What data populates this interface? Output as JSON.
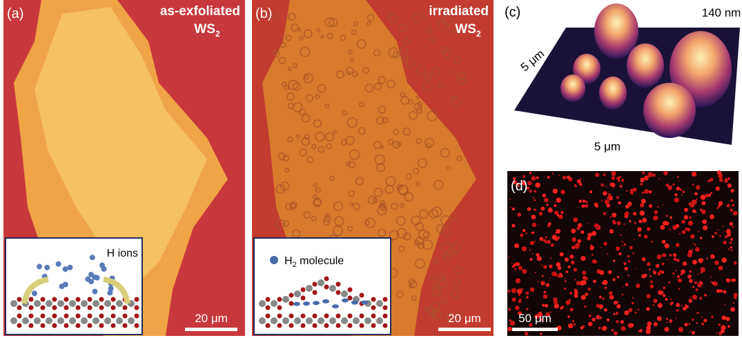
{
  "panels": [
    {
      "label": "(a)",
      "title": "as-exfoliated",
      "material": {
        "base": "WS",
        "sub": "2"
      },
      "inset_label": "H ions",
      "scale_bar": "20 μm"
    },
    {
      "label": "(b)",
      "title": "irradiated",
      "material": {
        "base": "WS",
        "sub": "2"
      },
      "inset_label": {
        "base": "H",
        "sub": "2",
        "rest": " molecule"
      },
      "scale_bar": "20 μm"
    },
    {
      "label": "(c)",
      "height_label": "140 nm",
      "y_size": "5 μm",
      "x_size": "5 μm"
    },
    {
      "label": "(d)",
      "scale_bar": "50 μm"
    }
  ]
}
